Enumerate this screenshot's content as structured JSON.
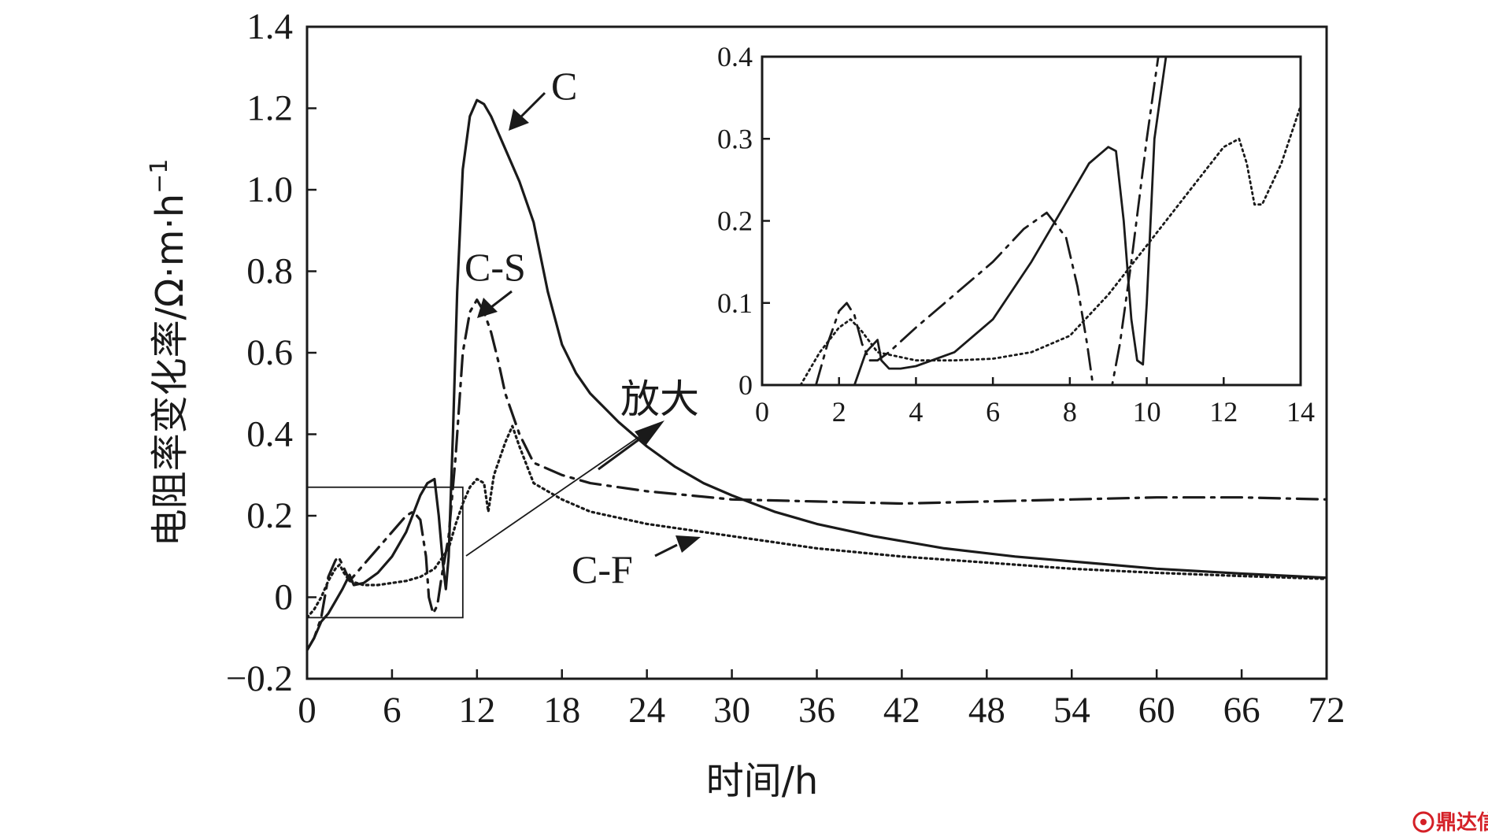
{
  "chart_data": {
    "type": "line",
    "xlabel": "时间/h",
    "ylabel": "电阻率变化率/Ω·m·h",
    "ylabel_sup": "−1",
    "xlim": [
      0,
      72
    ],
    "ylim": [
      -0.2,
      1.4
    ],
    "x_ticks": [
      0,
      6,
      12,
      18,
      24,
      30,
      36,
      42,
      48,
      54,
      60,
      66,
      72
    ],
    "x_tick_labels": [
      "0",
      "6",
      "12",
      "18",
      "24",
      "30",
      "36",
      "42",
      "48",
      "54",
      "60",
      "66",
      "72"
    ],
    "y_ticks": [
      -0.2,
      0,
      0.2,
      0.4,
      0.6,
      0.8,
      1.0,
      1.2,
      1.4
    ],
    "y_tick_labels": [
      "−0.2",
      "0",
      "0.2",
      "0.4",
      "0.6",
      "0.8",
      "1.0",
      "1.2",
      "1.4"
    ],
    "series": [
      {
        "name": "C",
        "style": "solid",
        "x": [
          0,
          0.5,
          1,
          1.5,
          2,
          2.5,
          3,
          3.3,
          4,
          5,
          6,
          7,
          8,
          8.5,
          9,
          9.3,
          9.6,
          9.8,
          10,
          10.3,
          10.6,
          11,
          11.5,
          12,
          12.5,
          13,
          14,
          15,
          16,
          17,
          18,
          19,
          20,
          22,
          24,
          26,
          28,
          30,
          33,
          36,
          40,
          45,
          50,
          55,
          60,
          66,
          72
        ],
        "values": [
          -0.13,
          -0.1,
          -0.06,
          -0.04,
          -0.01,
          0.02,
          0.055,
          0.03,
          0.035,
          0.06,
          0.1,
          0.16,
          0.25,
          0.28,
          0.29,
          0.2,
          0.08,
          0.02,
          0.1,
          0.4,
          0.75,
          1.05,
          1.18,
          1.22,
          1.21,
          1.18,
          1.1,
          1.02,
          0.92,
          0.75,
          0.62,
          0.55,
          0.5,
          0.43,
          0.37,
          0.32,
          0.28,
          0.25,
          0.21,
          0.18,
          0.15,
          0.12,
          0.1,
          0.085,
          0.07,
          0.058,
          0.048
        ]
      },
      {
        "name": "C-S",
        "style": "dashdot",
        "x": [
          0,
          0.5,
          1,
          1.5,
          2,
          2.2,
          2.5,
          3,
          3.5,
          4,
          5,
          6,
          7,
          7.5,
          8,
          8.4,
          8.6,
          8.9,
          9.2,
          9.5,
          10,
          10.5,
          11,
          11.5,
          12,
          12.5,
          13,
          13.5,
          14,
          15,
          16,
          18,
          20,
          24,
          30,
          36,
          42,
          48,
          54,
          60,
          66,
          72
        ],
        "values": [
          -0.13,
          -0.1,
          -0.05,
          0.05,
          0.09,
          0.1,
          0.08,
          0.04,
          0.06,
          0.08,
          0.12,
          0.16,
          0.2,
          0.21,
          0.19,
          0.1,
          0.0,
          -0.04,
          -0.02,
          0.05,
          0.15,
          0.35,
          0.6,
          0.7,
          0.73,
          0.7,
          0.65,
          0.58,
          0.5,
          0.4,
          0.33,
          0.3,
          0.28,
          0.26,
          0.24,
          0.235,
          0.23,
          0.235,
          0.24,
          0.245,
          0.245,
          0.24
        ]
      },
      {
        "name": "C-F",
        "style": "dotted",
        "x": [
          0,
          0.5,
          1,
          1.5,
          2,
          2.3,
          2.6,
          3,
          4,
          5,
          6,
          7,
          8,
          9,
          10,
          10.5,
          11,
          11.5,
          12,
          12.5,
          12.8,
          13.2,
          14,
          14.5,
          15,
          16,
          18,
          20,
          24,
          28,
          30,
          36,
          42,
          48,
          54,
          60,
          66,
          72
        ],
        "values": [
          -0.05,
          -0.03,
          0.0,
          0.04,
          0.07,
          0.08,
          0.06,
          0.04,
          0.03,
          0.03,
          0.035,
          0.04,
          0.05,
          0.07,
          0.12,
          0.18,
          0.23,
          0.27,
          0.29,
          0.28,
          0.21,
          0.3,
          0.38,
          0.42,
          0.37,
          0.28,
          0.24,
          0.21,
          0.18,
          0.16,
          0.15,
          0.12,
          0.1,
          0.085,
          0.07,
          0.06,
          0.052,
          0.045
        ]
      }
    ],
    "annotations": {
      "C": "C",
      "C-S": "C-S",
      "C-F": "C-F",
      "zoom": "放大"
    },
    "zoom_box": {
      "xlim": [
        0,
        11
      ],
      "ylim": [
        -0.05,
        0.27
      ]
    },
    "inset": {
      "xlim": [
        0,
        14
      ],
      "ylim": [
        0,
        0.4
      ],
      "x_ticks": [
        0,
        2,
        4,
        6,
        8,
        10,
        12,
        14
      ],
      "x_tick_labels": [
        "0",
        "2",
        "4",
        "6",
        "8",
        "10",
        "12",
        "14"
      ],
      "y_ticks": [
        0,
        0.1,
        0.2,
        0.3,
        0.4
      ],
      "y_tick_labels": [
        "0",
        "0.1",
        "0.2",
        "0.3",
        "0.4"
      ],
      "series": [
        {
          "name": "C",
          "style": "solid",
          "x": [
            2.4,
            2.7,
            3.0,
            3.1,
            3.3,
            3.6,
            4.0,
            5.0,
            6.0,
            7.0,
            8.0,
            8.5,
            9.0,
            9.2,
            9.4,
            9.6,
            9.75,
            9.9,
            10.0,
            10.2,
            10.5
          ],
          "values": [
            0.0,
            0.04,
            0.055,
            0.03,
            0.02,
            0.02,
            0.023,
            0.04,
            0.08,
            0.15,
            0.23,
            0.27,
            0.29,
            0.285,
            0.2,
            0.08,
            0.03,
            0.025,
            0.1,
            0.3,
            0.4
          ]
        },
        {
          "name": "C-S",
          "style": "dashdot",
          "x": [
            1.4,
            1.7,
            2.0,
            2.2,
            2.4,
            2.6,
            2.8,
            3.0,
            3.3,
            4.0,
            5.0,
            6.0,
            6.8,
            7.4,
            7.9,
            8.2,
            8.45,
            8.6,
            9.1,
            9.3,
            9.6,
            10.0,
            10.3
          ],
          "values": [
            0.0,
            0.05,
            0.09,
            0.1,
            0.085,
            0.05,
            0.03,
            0.03,
            0.04,
            0.07,
            0.11,
            0.15,
            0.19,
            0.21,
            0.18,
            0.12,
            0.05,
            0.0,
            0.0,
            0.05,
            0.15,
            0.3,
            0.4
          ]
        },
        {
          "name": "C-F",
          "style": "dotted",
          "x": [
            1.0,
            1.5,
            2.0,
            2.3,
            2.6,
            3.0,
            4.0,
            5.0,
            6.0,
            7.0,
            8.0,
            9.0,
            10.0,
            11.0,
            11.5,
            12.0,
            12.4,
            12.6,
            12.8,
            13.0,
            13.5,
            14.0
          ],
          "values": [
            0.0,
            0.04,
            0.07,
            0.08,
            0.065,
            0.04,
            0.03,
            0.03,
            0.032,
            0.04,
            0.06,
            0.11,
            0.17,
            0.23,
            0.26,
            0.29,
            0.3,
            0.27,
            0.22,
            0.22,
            0.27,
            0.34
          ]
        }
      ]
    }
  },
  "watermark": {
    "logo_text": "鼎达信",
    "color": "#d42027"
  }
}
